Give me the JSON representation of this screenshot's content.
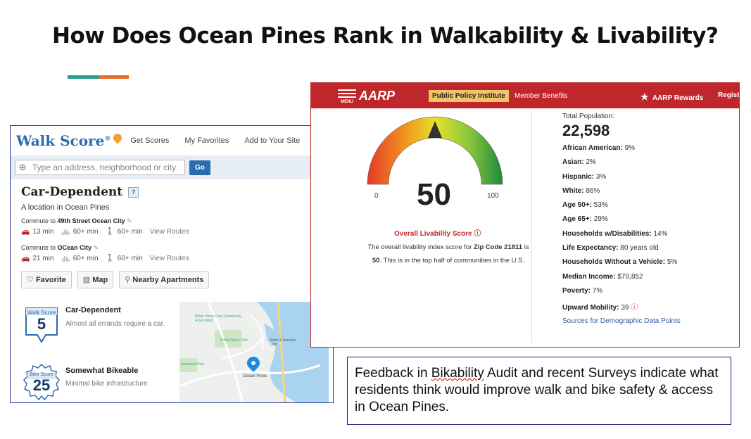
{
  "slide": {
    "title": "How Does Ocean Pines Rank in Walkability & Livability?",
    "accent_colors": [
      "#2a9d8f",
      "#e76f2a"
    ]
  },
  "walkscore": {
    "logo": "Walk Score",
    "nav": [
      "Get Scores",
      "My Favorites",
      "Add to Your Site"
    ],
    "search_placeholder": "Type an address, neighborhood or city",
    "go_label": "Go",
    "heading": "Car-Dependent",
    "help": "?",
    "location": "A location in Ocean Pines",
    "commutes": [
      {
        "prefix": "Commute to ",
        "dest": "49th Street Ocean City",
        "car": "13 min",
        "bike": "60+ min",
        "walk": "60+ min",
        "routes": "View Routes"
      },
      {
        "prefix": "Commute to ",
        "dest": "OCean City",
        "car": "21 min",
        "bike": "60+ min",
        "walk": "60+ min",
        "routes": "View Routes"
      }
    ],
    "buttons": [
      "Favorite",
      "Map",
      "Nearby Apartments"
    ],
    "walk_badge": {
      "label": "Walk Score",
      "value": "5",
      "title": "Car-Dependent",
      "desc": "Almost all errands require a car."
    },
    "bike_badge": {
      "label": "Bike Score",
      "value": "25",
      "title": "Somewhat Bikeable",
      "desc": "Minimal bike infrastructure."
    },
    "map_labels": [
      "White Horse Park Community Association",
      "White Horse Park",
      "Somerset Park",
      "Ocean Pines",
      "Swim & Racquet Club"
    ]
  },
  "aarp": {
    "menu": "MENU",
    "logo": "AARP",
    "ppi": "Public Policy Institute",
    "member": "Member Benefits",
    "rewards": "AARP Rewards",
    "register": "Registe",
    "score": "50",
    "min": "0",
    "max": "100",
    "score_label": "Overall Livability Score",
    "desc_pre": "The overall livability index score for ",
    "desc_zip": "Zip Code 21811",
    "desc_mid": " is ",
    "desc_score": "50",
    "desc_post": ". This is in the top half of communities in the U.S.",
    "total_pop_label": "Total Population:",
    "total_pop": "22,598",
    "stats": [
      {
        "label": "African American:",
        "value": "9%"
      },
      {
        "label": "Asian:",
        "value": "2%"
      },
      {
        "label": "Hispanic:",
        "value": "3%"
      },
      {
        "label": "White:",
        "value": "86%"
      },
      {
        "label": "Age 50+:",
        "value": "53%"
      },
      {
        "label": "Age 65+:",
        "value": "29%"
      },
      {
        "label": "Households w/Disabilities:",
        "value": "14%"
      },
      {
        "label": "Life Expectancy:",
        "value": "80 years old"
      },
      {
        "label": "Households Without a Vehicle:",
        "value": "5%"
      },
      {
        "label": "Median Income:",
        "value": "$70,852"
      },
      {
        "label": "Poverty:",
        "value": "7%"
      },
      {
        "label": "Upward Mobility:",
        "value": "39"
      }
    ],
    "sources": "Sources for Demographic Data Points"
  },
  "feedback": {
    "pre": "Feedback in ",
    "bik": "Bikability",
    "post": " Audit and recent Surveys indicate what residents think would improve walk and bike safety & access in Ocean Pines."
  }
}
